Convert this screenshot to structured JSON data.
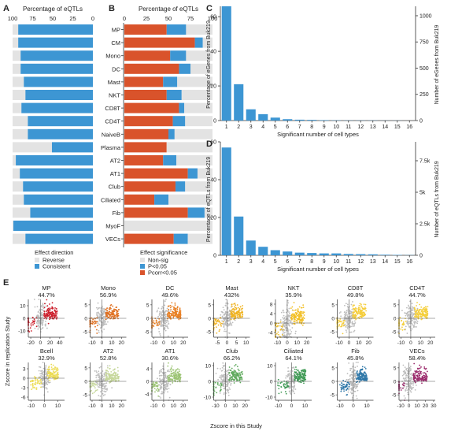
{
  "panels": {
    "A": {
      "letter": "A",
      "axis_label": "Percentage of eQTLs",
      "ticks": [
        "100",
        "75",
        "50",
        "25",
        "0"
      ],
      "legend_title": "Effect direction",
      "legend": [
        {
          "label": "Reverse",
          "color": "#e3e3e3"
        },
        {
          "label": "Consistent",
          "color": "#3d96d3"
        }
      ]
    },
    "B": {
      "letter": "B",
      "axis_label": "Percentage of eQTLs",
      "ticks": [
        "0",
        "25",
        "50",
        "75",
        "100"
      ],
      "legend_title": "Effect significance",
      "legend": [
        {
          "label": "Non-sig",
          "color": "#e3e3e3"
        },
        {
          "label": "P<0.05",
          "color": "#3d96d3"
        },
        {
          "label": "Pcorr<0.05",
          "color": "#d9532b"
        }
      ]
    },
    "C": {
      "letter": "C",
      "ylabel_left": "Percentage of eGenes from Buk219",
      "ylabel_right": "Number of eGenes from Buk219",
      "xlabel": "Significant number of cell types",
      "y_ticks": [
        "0",
        "20",
        "40",
        "60"
      ],
      "y2_ticks": [
        "0",
        "250",
        "500",
        "750",
        "1000"
      ]
    },
    "D": {
      "letter": "D",
      "ylabel_left": "Percentage of eQTLs from Buk219",
      "ylabel_right": "Number of eQTLs from Buk219",
      "xlabel": "Significant number of cell types",
      "y_ticks": [
        "0",
        "20",
        "40",
        "60"
      ],
      "y2_ticks": [
        "0",
        "2.5k",
        "5k",
        "7.5k"
      ]
    },
    "E": {
      "letter": "E",
      "ylabel": "Zscore in replication Study",
      "xlabel": "Zscore in this Study"
    }
  },
  "chart_data": [
    {
      "type": "bar",
      "panel": "A",
      "orientation": "horizontal",
      "categories": [
        "MP",
        "CM",
        "Mono",
        "DC",
        "Mast",
        "NKT",
        "CD8T",
        "CD4T",
        "NaiveB",
        "Plasma",
        "AT2",
        "AT1",
        "Club",
        "Ciliated",
        "Fib",
        "MyoF",
        "VECs"
      ],
      "series": [
        {
          "name": "Consistent",
          "color": "#3d96d3",
          "values": [
            93,
            93,
            90,
            90,
            86,
            84,
            89,
            81,
            81,
            51,
            96,
            91,
            87,
            86,
            78,
            99,
            84
          ]
        },
        {
          "name": "Reverse",
          "color": "#e3e3e3",
          "values": [
            7,
            7,
            10,
            10,
            14,
            16,
            11,
            19,
            19,
            49,
            4,
            9,
            13,
            14,
            22,
            1,
            16
          ]
        }
      ],
      "xlim": [
        100,
        0
      ]
    },
    {
      "type": "bar",
      "panel": "B",
      "orientation": "horizontal",
      "categories": [
        "MP",
        "CM",
        "Mono",
        "DC",
        "Mast",
        "NKT",
        "CD8T",
        "CD4T",
        "NaiveB",
        "Plasma",
        "AT2",
        "AT1",
        "Club",
        "Ciliated",
        "Fib",
        "MyoF",
        "VECs"
      ],
      "series": [
        {
          "name": "Pcorr<0.05",
          "color": "#d9532b",
          "values": [
            48,
            80,
            52,
            62,
            44,
            48,
            62,
            55,
            50,
            48,
            44,
            72,
            58,
            34,
            72,
            0,
            56
          ]
        },
        {
          "name": "P<0.05",
          "color": "#3d96d3",
          "values": [
            22,
            9,
            18,
            13,
            16,
            17,
            6,
            14,
            7,
            0,
            15,
            11,
            11,
            16,
            19,
            0,
            16
          ]
        },
        {
          "name": "Non-sig",
          "color": "#e3e3e3",
          "values": [
            30,
            11,
            30,
            25,
            40,
            35,
            32,
            31,
            43,
            52,
            41,
            17,
            31,
            50,
            9,
            100,
            28
          ]
        }
      ],
      "xlim": [
        0,
        100
      ]
    },
    {
      "type": "bar",
      "panel": "C",
      "categories": [
        "1",
        "2",
        "3",
        "4",
        "5",
        "6",
        "7",
        "8",
        "9",
        "10",
        "11",
        "12",
        "13",
        "14",
        "15",
        "16"
      ],
      "values": [
        66,
        21,
        6.5,
        3.7,
        1.7,
        0.8,
        0.5,
        0.4,
        0.25,
        0.15,
        0.1,
        0.1,
        0.1,
        0.05,
        0.05,
        0
      ],
      "ylim": [
        0,
        66
      ],
      "y2lim": [
        0,
        1090
      ]
    },
    {
      "type": "bar",
      "panel": "D",
      "categories": [
        "1",
        "2",
        "3",
        "4",
        "5",
        "6",
        "7",
        "8",
        "9",
        "10",
        "11",
        "12",
        "13",
        "14",
        "15",
        "16"
      ],
      "values": [
        57,
        20.5,
        7.8,
        4.5,
        2.7,
        2.0,
        1.4,
        1.2,
        1.0,
        1.0,
        0.7,
        0.6,
        0.5,
        0.3,
        0.2,
        0.1
      ],
      "ylim": [
        0,
        60
      ],
      "y2lim": [
        0,
        9000
      ]
    },
    {
      "type": "scatter",
      "panel": "E",
      "plots": [
        {
          "name": "MP",
          "pct": "44.7%",
          "color": "#cc1e2b",
          "xticks": [
            "-20",
            "0",
            "20",
            "40"
          ],
          "yticks": [
            "10",
            "0",
            "-10"
          ],
          "xr": [
            -25,
            50
          ],
          "yr": [
            -15,
            15
          ]
        },
        {
          "name": "Mono",
          "pct": "56.9%",
          "color": "#e07020",
          "xticks": [
            "-10",
            "0",
            "10",
            "20"
          ],
          "yticks": [
            "5",
            "0",
            "-5"
          ],
          "xr": [
            -12,
            25
          ],
          "yr": [
            -7,
            7
          ]
        },
        {
          "name": "DC",
          "pct": "49.6%",
          "color": "#e87f22",
          "xticks": [
            "-10",
            "0",
            "10",
            "20"
          ],
          "yticks": [
            "5",
            "0",
            "-5"
          ],
          "xr": [
            -12,
            25
          ],
          "yr": [
            -7,
            7
          ]
        },
        {
          "name": "Mast",
          "pct": "432%",
          "color": "#f0b320",
          "xticks": [
            "-5",
            "0",
            "5",
            "10"
          ],
          "yticks": [
            "5",
            "0",
            "-5"
          ],
          "xr": [
            -7,
            12
          ],
          "yr": [
            -7,
            7
          ]
        },
        {
          "name": "NKT",
          "pct": "35.9%",
          "color": "#f2bf25",
          "xticks": [
            "-10",
            "0",
            "10",
            "20"
          ],
          "yticks": [
            "8",
            "4",
            "0",
            "-4"
          ],
          "xr": [
            -12,
            25
          ],
          "yr": [
            -6,
            10
          ]
        },
        {
          "name": "CD8T",
          "pct": "49.8%",
          "color": "#f5cd3a",
          "xticks": [
            "-10",
            "0",
            "10",
            "20"
          ],
          "yticks": [
            "5",
            "0",
            "-5"
          ],
          "xr": [
            -12,
            25
          ],
          "yr": [
            -7,
            7
          ]
        },
        {
          "name": "CD4T",
          "pct": "44.7%",
          "color": "#f5cf3b",
          "xticks": [
            "-10",
            "0",
            "10",
            "20"
          ],
          "yticks": [
            "5",
            "0",
            "-5"
          ],
          "xr": [
            -12,
            25
          ],
          "yr": [
            -7,
            7
          ]
        },
        {
          "name": "Bcell",
          "pct": "32.9%",
          "color": "#ecdc55",
          "xticks": [
            "-10",
            "0",
            "10"
          ],
          "yticks": [
            "3",
            "0",
            "-3",
            "-6"
          ],
          "xr": [
            -12,
            15
          ],
          "yr": [
            -7,
            5
          ]
        },
        {
          "name": "AT2",
          "pct": "52.8%",
          "color": "#c6d79b",
          "xticks": [
            "-10",
            "0",
            "10",
            "20"
          ],
          "yticks": [
            "5",
            "0",
            "-5"
          ],
          "xr": [
            -12,
            25
          ],
          "yr": [
            -7,
            7
          ]
        },
        {
          "name": "AT1",
          "pct": "30.6%",
          "color": "#9cc474",
          "xticks": [
            "-10",
            "0",
            "10",
            "20"
          ],
          "yticks": [
            "4",
            "0",
            "-4"
          ],
          "xr": [
            -12,
            25
          ],
          "yr": [
            -6,
            6
          ]
        },
        {
          "name": "Club",
          "pct": "66.2%",
          "color": "#5ea95c",
          "xticks": [
            "-10",
            "0",
            "10",
            "20"
          ],
          "yticks": [
            "10",
            "0",
            "-10"
          ],
          "xr": [
            -12,
            25
          ],
          "yr": [
            -12,
            12
          ]
        },
        {
          "name": "Ciliated",
          "pct": "64.1%",
          "color": "#3f9a55",
          "xticks": [
            "-10",
            "0",
            "10"
          ],
          "yticks": [
            "10",
            "0",
            "-10"
          ],
          "xr": [
            -12,
            15
          ],
          "yr": [
            -12,
            12
          ]
        },
        {
          "name": "Fib",
          "pct": "45.8%",
          "color": "#2e77a8",
          "xticks": [
            "-10",
            "0",
            "10"
          ],
          "yticks": [
            "5",
            "0",
            "-5"
          ],
          "xr": [
            -12,
            15
          ],
          "yr": [
            -7,
            7
          ]
        },
        {
          "name": "VECs",
          "pct": "58.4%",
          "color": "#9b2a6c",
          "xticks": [
            "-10",
            "0",
            "10",
            "20",
            "30"
          ],
          "yticks": [
            "5",
            "0",
            "-5"
          ],
          "xr": [
            -12,
            32
          ],
          "yr": [
            -7,
            7
          ]
        }
      ]
    }
  ]
}
